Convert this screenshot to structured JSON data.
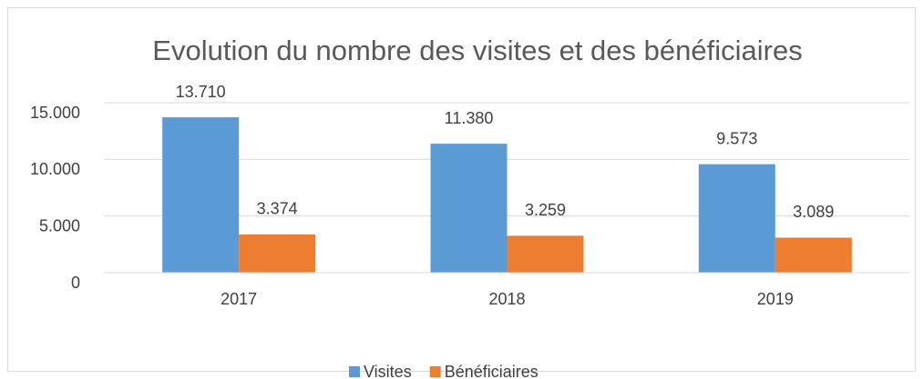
{
  "chart_data": {
    "type": "bar",
    "title": "Evolution du nombre des visites et des bénéficiaires",
    "categories": [
      "2017",
      "2018",
      "2019"
    ],
    "series": [
      {
        "name": "Visites",
        "color": "#5b9bd5",
        "values": [
          13710,
          11380,
          9573
        ],
        "value_labels": [
          "13.710",
          "11.380",
          "9.573"
        ]
      },
      {
        "name": "Bénéficiaires",
        "color": "#ed7d31",
        "values": [
          3374,
          3259,
          3089
        ],
        "value_labels": [
          "3.374",
          "3.259",
          "3.089"
        ]
      }
    ],
    "ylim": [
      0,
      15000
    ],
    "yticks": [
      0,
      {
        "value": 5000,
        "label": "5.000"
      },
      {
        "value": 10000,
        "label": "10.000"
      },
      {
        "value": 15000,
        "label": "15.000"
      }
    ],
    "grid": true,
    "legend": "bottom"
  }
}
